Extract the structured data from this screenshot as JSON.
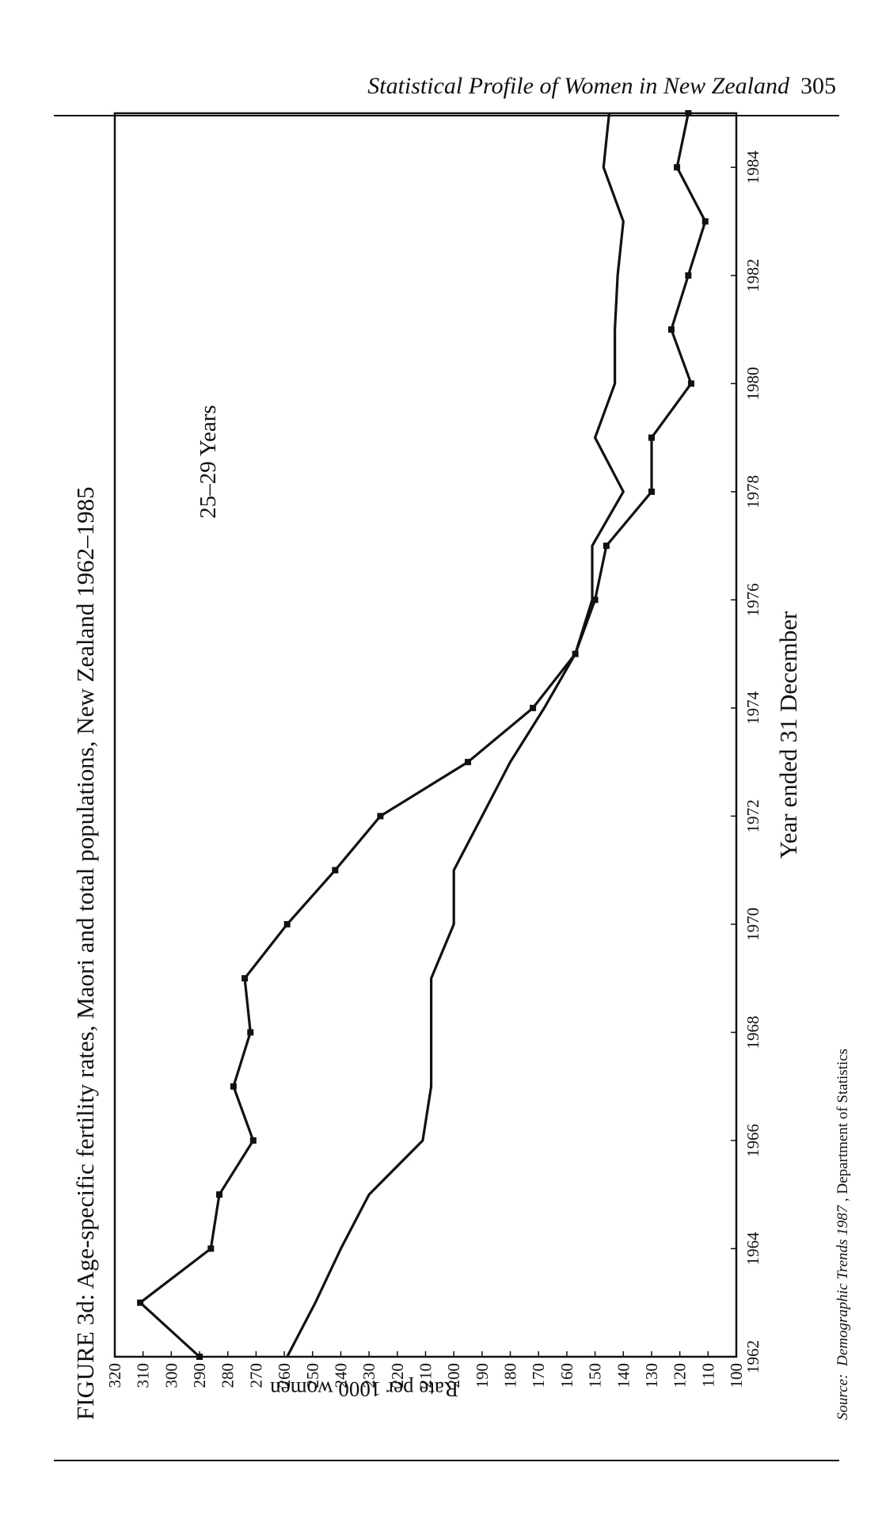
{
  "running_head": {
    "title": "Statistical Profile of Women in New Zealand",
    "page_number": "305"
  },
  "figure": {
    "caption": "FIGURE 3d: Age-specific fertility rates, Maori and total populations, New Zealand 1962–1985",
    "source_label": "Source:",
    "source_title": "Demographic Trends 1987",
    "source_rest": ", Department of Statistics"
  },
  "chart_data": {
    "type": "line",
    "annotation": "25–29 Years",
    "xlabel": "Year ended 31 December",
    "ylabel": "Rate per 1000 women",
    "xlim": [
      1962,
      1985
    ],
    "ylim": [
      100,
      320
    ],
    "x_ticks": [
      1962,
      1964,
      1966,
      1968,
      1970,
      1972,
      1974,
      1976,
      1978,
      1980,
      1982,
      1984
    ],
    "y_ticks": [
      100,
      110,
      120,
      130,
      140,
      150,
      160,
      170,
      180,
      190,
      200,
      210,
      220,
      230,
      240,
      250,
      260,
      270,
      280,
      290,
      300,
      310,
      320
    ],
    "grid": false,
    "x": [
      1962,
      1963,
      1964,
      1965,
      1966,
      1967,
      1968,
      1969,
      1970,
      1971,
      1972,
      1973,
      1974,
      1975,
      1976,
      1977,
      1978,
      1979,
      1980,
      1981,
      1982,
      1983,
      1984,
      1985
    ],
    "series": [
      {
        "marker": "square",
        "values": [
          290,
          311,
          286,
          283,
          271,
          278,
          272,
          274,
          259,
          242,
          226,
          195,
          172,
          157,
          150,
          146,
          130,
          130,
          116,
          123,
          117,
          111,
          121,
          117
        ]
      },
      {
        "marker": "none",
        "values": [
          259,
          249,
          240,
          230,
          211,
          208,
          208,
          208,
          200,
          200,
          190,
          180,
          168,
          157,
          151,
          151,
          140,
          150,
          143,
          143,
          142,
          140,
          147,
          145
        ]
      }
    ]
  }
}
